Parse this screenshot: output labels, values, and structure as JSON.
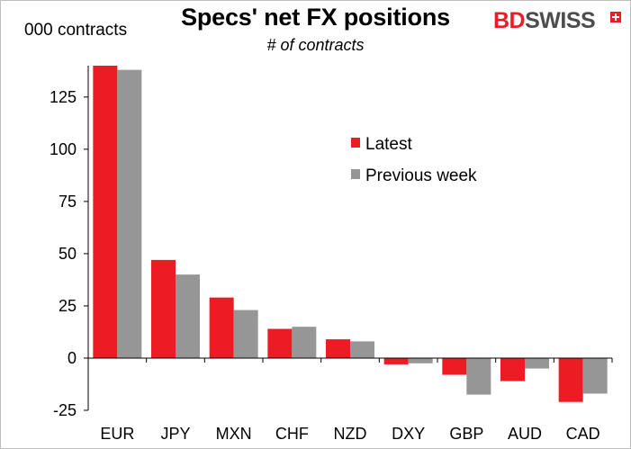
{
  "logo": {
    "part1": "BD",
    "part2": "SWISS"
  },
  "colors": {
    "latest": "#ed1c24",
    "previous": "#969696",
    "axis": "#000000",
    "brand_red": "#ed1c24"
  },
  "chart_data": {
    "type": "bar",
    "title": "Specs' net FX positions",
    "subtitle": "# of contracts",
    "ylabel": "000 contracts",
    "xlabel": "",
    "categories": [
      "EUR",
      "JPY",
      "MXN",
      "CHF",
      "NZD",
      "DXY",
      "GBP",
      "AUD",
      "CAD"
    ],
    "series": [
      {
        "name": "Latest",
        "values": [
          140,
          47,
          29,
          14,
          9,
          -3,
          -8,
          -11,
          -21
        ]
      },
      {
        "name": "Previous week",
        "values": [
          138,
          40,
          23,
          15,
          8,
          -2.5,
          -17.5,
          -5,
          -17
        ]
      }
    ],
    "ylim": [
      -25,
      140
    ],
    "yticks": [
      -25,
      0,
      25,
      50,
      75,
      100,
      125
    ],
    "ytick_labels": [
      "-25",
      "0",
      "25",
      "50",
      "75",
      "100",
      "125"
    ],
    "grid": false,
    "legend_position": "upper-middle"
  }
}
